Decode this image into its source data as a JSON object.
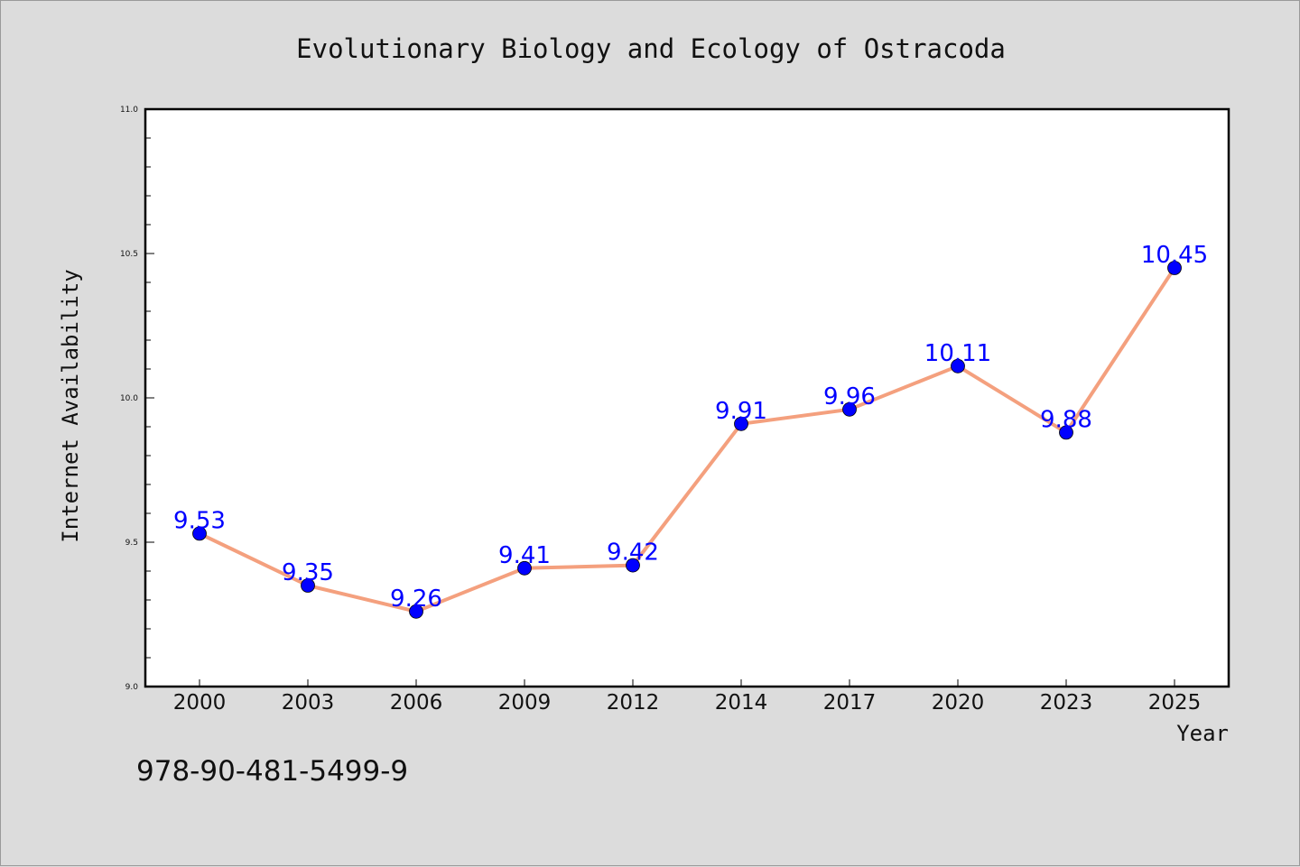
{
  "chart_data": {
    "type": "line",
    "title": "Evolutionary Biology and Ecology of Ostracoda",
    "xlabel": "Year",
    "ylabel": "Internet Availability",
    "categories": [
      "2000",
      "2003",
      "2006",
      "2009",
      "2012",
      "2014",
      "2017",
      "2020",
      "2023",
      "2025"
    ],
    "values": [
      9.53,
      9.35,
      9.26,
      9.41,
      9.42,
      9.91,
      9.96,
      10.11,
      9.88,
      10.45
    ],
    "data_labels": [
      "9.53",
      "9.35",
      "9.26",
      "9.41",
      "9.42",
      "9.91",
      "9.96",
      "10.11",
      "9.88",
      "10.45"
    ],
    "ylim": [
      9.0,
      11.0
    ],
    "yticks": [
      "9.0",
      "9.5",
      "10.0",
      "10.5",
      "11.0"
    ],
    "grid": false,
    "legend": "none",
    "line_color": "#f4a07e",
    "marker_color": "#0000ff",
    "label_color": "#0000ff"
  },
  "footer": {
    "isbn": "978-90-481-5499-9"
  }
}
